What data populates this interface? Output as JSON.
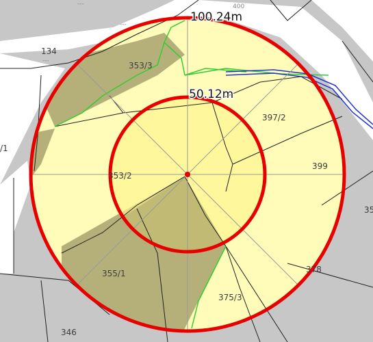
{
  "map": {
    "radius_labels": {
      "outer": "100.24m",
      "inner": "50.12m"
    },
    "parcel_labels": {
      "p134": "134",
      "p134_sub": "---",
      "p353_3": "353/3",
      "p397_2": "397/2",
      "p399": "399",
      "p353_2": "353/2",
      "p355_1": "355/1",
      "p375_3": "375/3",
      "p378": "378",
      "p346": "346",
      "p35": "35",
      "p1": "/1",
      "p400": "400",
      "tl_a": "---",
      "tl_b": "---"
    },
    "colors": {
      "circle_stroke": "#e60000",
      "buffer_fill": "#fffbb8",
      "inner_fill": "#fff48c",
      "forest_fill": "#b5b07a",
      "road_fill": "#c7c7c7",
      "stream": "#2233cc",
      "vegetation_line": "#33cc33"
    },
    "icons": {
      "center": "center-point-icon"
    }
  }
}
